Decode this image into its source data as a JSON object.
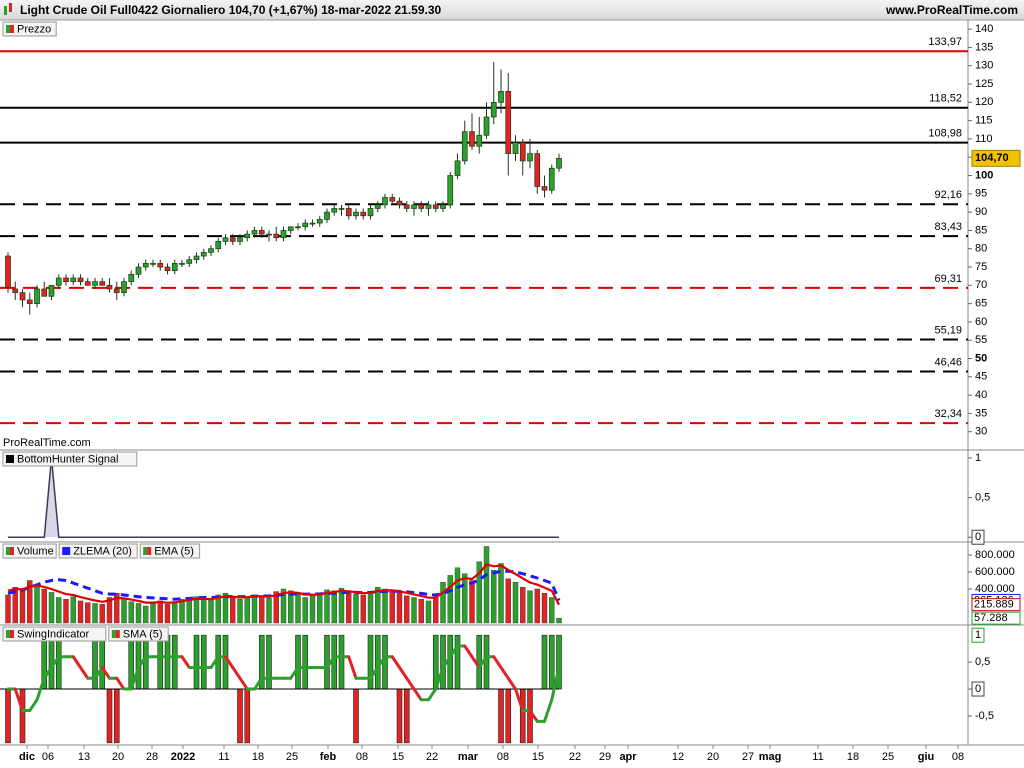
{
  "header": {
    "title": "Light Crude Oil Full0422 Giornaliero 104,70 (+1,67%) 18-mar-2022 21.59.30",
    "site": "www.ProRealTime.com"
  },
  "watermark": "ProRealTime.com",
  "x_labels": [
    "dic",
    "06",
    "13",
    "20",
    "28",
    "2022",
    "11",
    "18",
    "25",
    "feb",
    "08",
    "15",
    "22",
    "mar",
    "08",
    "15",
    "22",
    "29",
    "apr",
    "12",
    "20",
    "27",
    "mag",
    "11",
    "18",
    "25",
    "giu",
    "08"
  ],
  "chart_data": [
    {
      "type": "candlestick",
      "legend": "Prezzo",
      "up_color": "#2ca02c",
      "down_color": "#e02424",
      "open": [
        78,
        69,
        68,
        66,
        65,
        69,
        67,
        70,
        72,
        71,
        72,
        71,
        70,
        71,
        70,
        69,
        68,
        71,
        73,
        75,
        76,
        76,
        75,
        74,
        76,
        76,
        77,
        78,
        79,
        80,
        82,
        83,
        82,
        83,
        84,
        85,
        84,
        84,
        83,
        85,
        86,
        86,
        87,
        87,
        88,
        90,
        91,
        91,
        89,
        90,
        89,
        91,
        92,
        94,
        93,
        92,
        91,
        92,
        91,
        92,
        91,
        92,
        100,
        104,
        112,
        108,
        111,
        116,
        120,
        123,
        106,
        109,
        104,
        106,
        97,
        96,
        102
      ],
      "high": [
        79,
        71,
        69,
        68,
        70,
        71,
        70,
        73,
        73,
        73,
        73,
        72,
        72,
        72,
        72,
        71,
        72,
        74,
        76,
        77,
        77,
        77,
        76,
        77,
        77,
        78,
        79,
        80,
        81,
        83,
        84,
        84,
        84,
        85,
        86,
        86,
        85,
        86,
        86,
        86,
        87,
        88,
        88,
        89,
        91,
        92,
        92,
        92,
        91,
        91,
        92,
        93,
        95,
        95,
        94,
        93,
        93,
        93,
        93,
        93,
        93,
        101,
        106,
        115,
        117,
        116,
        120,
        131,
        129,
        128,
        111,
        110,
        110,
        107,
        100,
        103,
        106
      ],
      "low": [
        68,
        66,
        64,
        62,
        64,
        67,
        66,
        69,
        70,
        70,
        70,
        70,
        69,
        70,
        68,
        66,
        67,
        70,
        72,
        74,
        75,
        74,
        73,
        73,
        75,
        75,
        76,
        77,
        78,
        79,
        81,
        81,
        81,
        82,
        83,
        83,
        82,
        82,
        82,
        84,
        85,
        85,
        86,
        86,
        87,
        89,
        89,
        88,
        88,
        88,
        88,
        90,
        91,
        92,
        91,
        90,
        89,
        90,
        89,
        90,
        90,
        91,
        99,
        103,
        107,
        106,
        110,
        114,
        117,
        100,
        104,
        100,
        102,
        95,
        94,
        95,
        101
      ],
      "close": [
        69.5,
        68,
        66,
        65,
        69,
        67,
        70,
        72,
        71,
        72,
        71,
        70,
        71,
        70,
        69,
        68,
        71,
        73,
        75,
        76,
        76,
        75,
        74,
        76,
        76,
        77,
        78,
        79,
        80,
        82,
        83,
        82,
        83,
        84,
        85,
        84,
        84,
        83,
        85,
        86,
        86,
        87,
        87,
        88,
        90,
        91,
        91,
        89,
        90,
        89,
        91,
        92,
        94,
        93,
        92,
        91,
        92,
        91,
        92,
        91,
        92,
        100,
        104,
        112,
        108,
        111,
        116,
        120,
        123,
        106,
        109,
        104,
        106,
        97,
        96,
        102,
        104.7
      ],
      "last_label": "104,70",
      "levels": [
        {
          "value": 133.97,
          "label": "133,97",
          "color": "#e00000",
          "dashed": false
        },
        {
          "value": 118.52,
          "label": "118,52",
          "color": "#000000",
          "dashed": false
        },
        {
          "value": 108.98,
          "label": "108,98",
          "color": "#000000",
          "dashed": false
        },
        {
          "value": 92.16,
          "label": "92,16",
          "color": "#000000",
          "dashed": true
        },
        {
          "value": 83.43,
          "label": "83,43",
          "color": "#000000",
          "dashed": true
        },
        {
          "value": 69.31,
          "label": "69,31",
          "color": "#e00000",
          "dashed": true
        },
        {
          "value": 55.19,
          "label": "55,19",
          "color": "#000000",
          "dashed": true
        },
        {
          "value": 46.46,
          "label": "46,46",
          "color": "#000000",
          "dashed": true
        },
        {
          "value": 32.34,
          "label": "32,34",
          "color": "#e00000",
          "dashed": true
        }
      ],
      "ylim": [
        25,
        142.5
      ],
      "yticks": [
        30,
        35,
        40,
        45,
        50,
        55,
        60,
        65,
        70,
        75,
        80,
        85,
        90,
        95,
        100,
        105,
        110,
        115,
        120,
        125,
        130,
        135,
        140
      ]
    },
    {
      "type": "signal",
      "legend": "BottomHunter Signal",
      "color": "#3a3a5a",
      "values": [
        0,
        0,
        0,
        0,
        0,
        0,
        1,
        0,
        0,
        0,
        0,
        0,
        0,
        0,
        0,
        0,
        0,
        0,
        0,
        0,
        0,
        0,
        0,
        0,
        0,
        0,
        0,
        0,
        0,
        0,
        0,
        0,
        0,
        0,
        0,
        0,
        0,
        0,
        0,
        0,
        0,
        0,
        0,
        0,
        0,
        0,
        0,
        0,
        0,
        0,
        0,
        0,
        0,
        0,
        0,
        0,
        0,
        0,
        0,
        0,
        0,
        0,
        0,
        0,
        0,
        0,
        0,
        0,
        0,
        0,
        0,
        0,
        0,
        0,
        0,
        0,
        0
      ],
      "ylim": [
        -0.06,
        1.1
      ],
      "yticks": [
        1,
        {
          "value": 0.5,
          "label": "0,5"
        },
        0
      ]
    },
    {
      "type": "volume",
      "legend": "Volume",
      "values": [
        330000,
        420000,
        380000,
        500000,
        450000,
        400000,
        360000,
        300000,
        280000,
        310000,
        260000,
        240000,
        230000,
        220000,
        300000,
        350000,
        280000,
        250000,
        230000,
        200000,
        240000,
        260000,
        220000,
        250000,
        280000,
        300000,
        310000,
        290000,
        270000,
        330000,
        350000,
        300000,
        280000,
        310000,
        330000,
        320000,
        290000,
        370000,
        400000,
        380000,
        340000,
        300000,
        320000,
        350000,
        390000,
        380000,
        410000,
        360000,
        340000,
        330000,
        370000,
        420000,
        400000,
        380000,
        350000,
        320000,
        300000,
        280000,
        260000,
        300000,
        480000,
        560000,
        650000,
        580000,
        500000,
        720000,
        900000,
        620000,
        700000,
        520000,
        480000,
        420000,
        380000,
        400000,
        350000,
        300000,
        57288
      ],
      "last_label": "57.288",
      "series": [
        {
          "name": "ZLEMA (20)",
          "color": "#1a1aff",
          "dashed": true,
          "last_label": "265.136",
          "values": [
            350000,
            370000,
            390000,
            420000,
            450000,
            480000,
            500000,
            510000,
            500000,
            470000,
            440000,
            410000,
            380000,
            350000,
            340000,
            340000,
            330000,
            320000,
            310000,
            300000,
            295000,
            290000,
            285000,
            280000,
            285000,
            290000,
            295000,
            300000,
            300000,
            305000,
            310000,
            312000,
            310000,
            312000,
            315000,
            318000,
            318000,
            325000,
            335000,
            340000,
            342000,
            340000,
            340000,
            342000,
            348000,
            352000,
            358000,
            360000,
            360000,
            358000,
            360000,
            368000,
            372000,
            374000,
            372000,
            366000,
            358000,
            348000,
            336000,
            330000,
            350000,
            380000,
            420000,
            450000,
            470000,
            510000,
            570000,
            590000,
            610000,
            610000,
            600000,
            580000,
            555000,
            530000,
            500000,
            470000,
            265136
          ]
        },
        {
          "name": "EMA (5)",
          "color": "#e00000",
          "dashed": false,
          "last_label": "215.889",
          "values": [
            380000,
            400000,
            395000,
            430000,
            440000,
            425000,
            400000,
            370000,
            340000,
            330000,
            305000,
            285000,
            265000,
            250000,
            265000,
            295000,
            290000,
            275000,
            260000,
            240000,
            240000,
            247000,
            238000,
            242000,
            255000,
            270000,
            283000,
            285000,
            280000,
            297000,
            315000,
            310000,
            300000,
            303000,
            312000,
            315000,
            307000,
            328000,
            352000,
            361000,
            354000,
            336000,
            331000,
            337000,
            355000,
            363000,
            379000,
            373000,
            362000,
            351000,
            357000,
            378000,
            385000,
            383000,
            372000,
            355000,
            336000,
            317000,
            298000,
            299000,
            359000,
            426000,
            501000,
            527000,
            518000,
            585000,
            690000,
            667000,
            678000,
            625000,
            577000,
            525000,
            476000,
            451000,
            417000,
            378000,
            215889
          ]
        }
      ],
      "ylim": [
        -23500,
        953000
      ],
      "yticks": [
        {
          "value": 800000,
          "label": "800.000"
        },
        {
          "value": 600000,
          "label": "600.000"
        },
        {
          "value": 400000,
          "label": "400.000"
        }
      ]
    },
    {
      "type": "swing",
      "legend": "SwingIndicator",
      "values": [
        -1,
        0,
        -1,
        0,
        0,
        1,
        1,
        1,
        0,
        0,
        0,
        0,
        1,
        1,
        -1,
        -1,
        0,
        1,
        1,
        1,
        0,
        1,
        1,
        1,
        0,
        0,
        1,
        1,
        0,
        1,
        1,
        0,
        -1,
        -1,
        0,
        1,
        1,
        0,
        0,
        0,
        1,
        1,
        0,
        0,
        1,
        1,
        1,
        0,
        -1,
        0,
        1,
        1,
        1,
        0,
        -1,
        -1,
        0,
        0,
        0,
        1,
        1,
        1,
        1,
        0,
        0,
        1,
        1,
        0,
        -1,
        -1,
        0,
        -1,
        -1,
        0,
        1,
        1,
        1
      ],
      "series": [
        {
          "name": "SMA (5)",
          "values": [
            0,
            0,
            -0.4,
            -0.4,
            -0.2,
            0.2,
            0.4,
            0.6,
            0.6,
            0.6,
            0.4,
            0.2,
            0.2,
            0.4,
            0.2,
            0.2,
            0,
            0,
            0.4,
            0.6,
            0.6,
            0.6,
            0.6,
            0.6,
            0.6,
            0.4,
            0.4,
            0.4,
            0.4,
            0.6,
            0.6,
            0.4,
            0.2,
            0,
            0,
            0.2,
            0.2,
            0.2,
            0.2,
            0.2,
            0.4,
            0.4,
            0.4,
            0.4,
            0.4,
            0.6,
            0.6,
            0.6,
            0.2,
            0.2,
            0.2,
            0.4,
            0.6,
            0.6,
            0.4,
            0.2,
            0,
            -0.2,
            -0.2,
            0,
            0.4,
            0.6,
            0.8,
            0.8,
            0.6,
            0.4,
            0.6,
            0.6,
            0.4,
            0.2,
            0,
            -0.4,
            -0.4,
            -0.6,
            -0.6,
            -0.2,
            0.4
          ]
        }
      ],
      "ylim": [
        -1.04,
        1.19
      ],
      "yticks": [
        {
          "value": 0.5,
          "label": "0,5"
        },
        0,
        {
          "value": -0.5,
          "label": "-0,5"
        }
      ]
    }
  ]
}
